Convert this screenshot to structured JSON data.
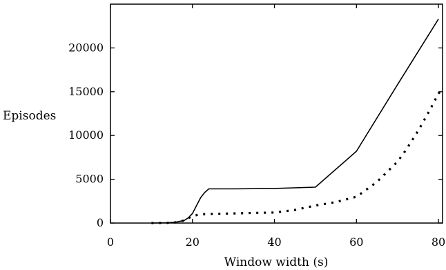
{
  "chart_data": {
    "type": "line",
    "title": "",
    "xlabel": "Window width (s)",
    "ylabel": "Episodes",
    "xlim": [
      0,
      81
    ],
    "ylim": [
      0,
      25000
    ],
    "xticks": [
      0,
      20,
      40,
      60,
      80
    ],
    "yticks": [
      0,
      5000,
      10000,
      15000,
      20000
    ],
    "x_tick_labels": [
      "0",
      "20",
      "40",
      "60",
      "80"
    ],
    "y_tick_labels": [
      "0",
      "5000",
      "10000",
      "15000",
      "20000"
    ],
    "grid": false,
    "legend": "none",
    "series": [
      {
        "style": "solid",
        "color": "#000000",
        "x": [
          10,
          14,
          16,
          18,
          19,
          20,
          21,
          22,
          23,
          24,
          30,
          40,
          50,
          60,
          70,
          80
        ],
        "y": [
          0,
          30,
          100,
          300,
          600,
          1100,
          2000,
          2900,
          3500,
          3900,
          3900,
          3950,
          4100,
          8200,
          15800,
          23300
        ]
      },
      {
        "style": "dotted",
        "color": "#000000",
        "x": [
          10,
          14,
          16,
          18,
          19,
          20,
          22,
          25,
          30,
          35,
          40,
          45,
          50,
          55,
          60,
          65,
          70,
          72,
          75,
          78,
          80,
          81
        ],
        "y": [
          0,
          20,
          80,
          300,
          550,
          800,
          1000,
          1050,
          1100,
          1150,
          1200,
          1500,
          2000,
          2400,
          3000,
          4700,
          7000,
          8300,
          10500,
          13000,
          14800,
          15200
        ]
      }
    ]
  }
}
